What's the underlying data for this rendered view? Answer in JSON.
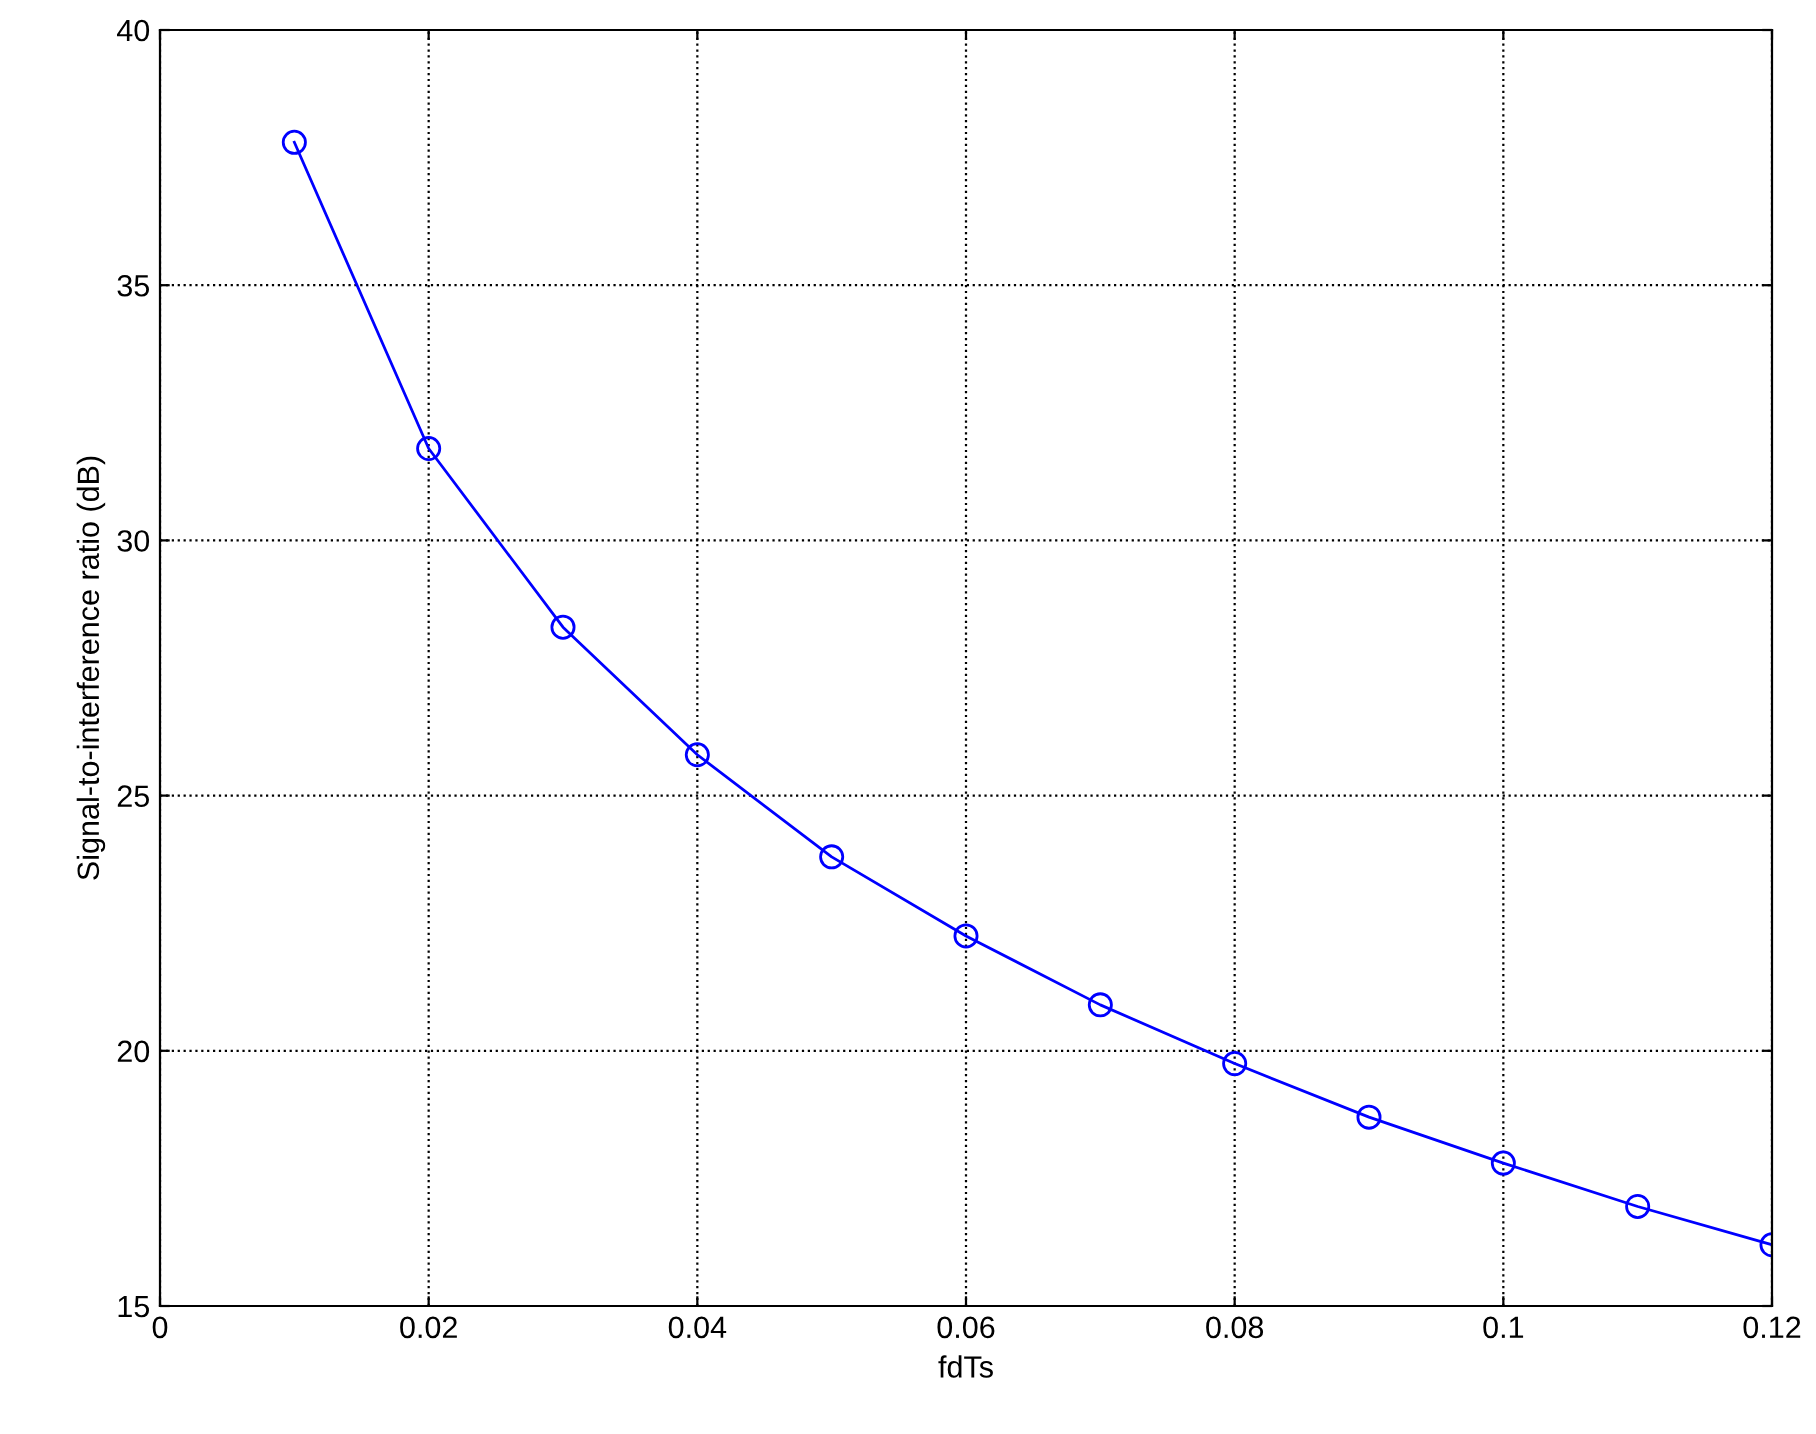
{
  "chart_data": {
    "type": "line",
    "xlabel": "fdTs",
    "ylabel": "Signal-to-interference ratio (dB)",
    "x": [
      0.01,
      0.02,
      0.03,
      0.04,
      0.05,
      0.06,
      0.07,
      0.08,
      0.09,
      0.1,
      0.11,
      0.12
    ],
    "series": [
      {
        "color": "#0000ff",
        "values": [
          37.8,
          31.8,
          28.3,
          25.8,
          23.8,
          22.25,
          20.9,
          19.75,
          18.7,
          17.8,
          16.95,
          16.2
        ]
      }
    ],
    "xlim": [
      0,
      0.12
    ],
    "xticks": [
      0,
      {
        "value": 0.02,
        "label": "0.02"
      },
      {
        "value": 0.04,
        "label": "0.04"
      },
      {
        "value": 0.06,
        "label": "0.06"
      },
      {
        "value": 0.08,
        "label": "0.08"
      },
      {
        "value": 0.1,
        "label": "0.1"
      },
      {
        "value": 0.12,
        "label": "0.12"
      }
    ],
    "ylim": [
      15,
      40
    ],
    "yticks": [
      15,
      20,
      25,
      30,
      35,
      40
    ],
    "grid": true,
    "marker": "circle",
    "line_style": "solid"
  }
}
